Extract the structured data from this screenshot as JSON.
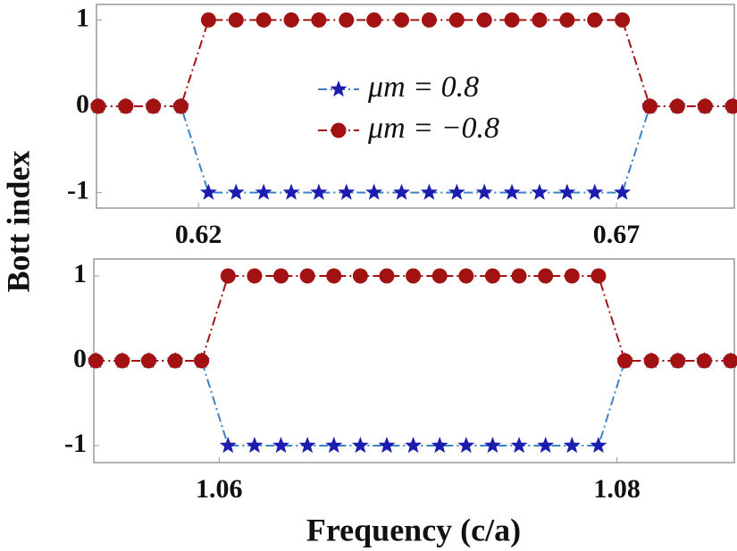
{
  "xlabel": "Frequency (c/a)",
  "ylabel": "Bott index",
  "chart_data": [
    {
      "type": "line",
      "x": [
        0.608,
        0.6113,
        0.6146,
        0.6179,
        0.6212,
        0.6245,
        0.6278,
        0.6311,
        0.6344,
        0.6377,
        0.641,
        0.6443,
        0.6476,
        0.6509,
        0.6542,
        0.6575,
        0.6608,
        0.6641,
        0.6674,
        0.6707,
        0.674,
        0.6773,
        0.6806,
        0.6839
      ],
      "xlim": [
        0.6078,
        0.6841
      ],
      "xticks": [
        0.62,
        0.67
      ],
      "ylim": [
        -1.18,
        1.18
      ],
      "yticks": [
        -1,
        0,
        1
      ],
      "legend": true,
      "series": [
        {
          "name": "μm = 0.8",
          "color": "#1c1cb0",
          "line_color": "#3c82c4",
          "marker": "star",
          "values": [
            0,
            0,
            0,
            0,
            -1,
            -1,
            -1,
            -1,
            -1,
            -1,
            -1,
            -1,
            -1,
            -1,
            -1,
            -1,
            -1,
            -1,
            -1,
            -1,
            0,
            0,
            0,
            0
          ]
        },
        {
          "name": "μm = −0.8",
          "color": "#a31212",
          "line_color": "#a31212",
          "marker": "circle",
          "values": [
            0,
            0,
            0,
            0,
            1,
            1,
            1,
            1,
            1,
            1,
            1,
            1,
            1,
            1,
            1,
            1,
            1,
            1,
            1,
            1,
            0,
            0,
            0,
            0
          ]
        }
      ]
    },
    {
      "type": "line",
      "x": [
        1.0538,
        1.05513,
        1.05646,
        1.05779,
        1.05912,
        1.06045,
        1.06178,
        1.06311,
        1.06444,
        1.06577,
        1.0671,
        1.06843,
        1.06976,
        1.07109,
        1.07242,
        1.07375,
        1.07508,
        1.07641,
        1.07774,
        1.07907,
        1.0804,
        1.08173,
        1.08306,
        1.08439,
        1.08572
      ],
      "xlim": [
        1.0537,
        1.0859
      ],
      "xticks": [
        1.06,
        1.08
      ],
      "ylim": [
        -1.2,
        1.2
      ],
      "yticks": [
        -1,
        0,
        1
      ],
      "legend": false,
      "series": [
        {
          "color": "#1c1cb0",
          "line_color": "#3c82c4",
          "marker": "star",
          "values": [
            0,
            0,
            0,
            0,
            0,
            -1,
            -1,
            -1,
            -1,
            -1,
            -1,
            -1,
            -1,
            -1,
            -1,
            -1,
            -1,
            -1,
            -1,
            -1,
            0,
            0,
            0,
            0,
            0
          ]
        },
        {
          "color": "#a31212",
          "line_color": "#a31212",
          "marker": "circle",
          "values": [
            0,
            0,
            0,
            0,
            0,
            1,
            1,
            1,
            1,
            1,
            1,
            1,
            1,
            1,
            1,
            1,
            1,
            1,
            1,
            1,
            0,
            0,
            0,
            0,
            0
          ]
        }
      ]
    }
  ]
}
